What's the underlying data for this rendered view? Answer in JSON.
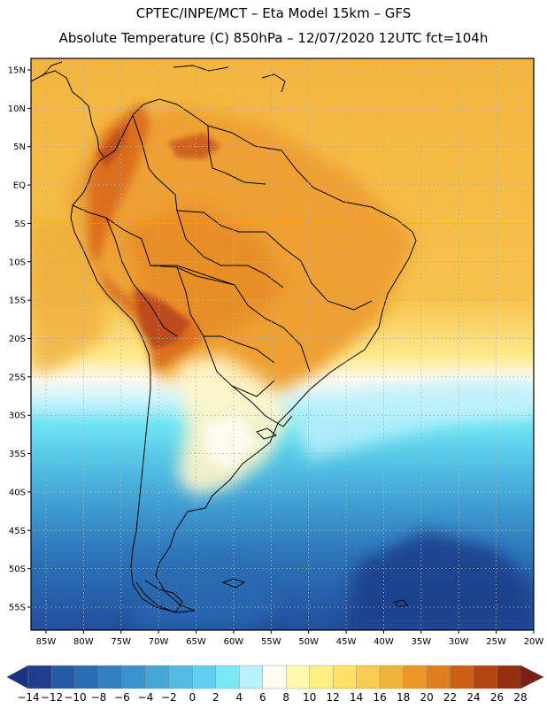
{
  "header": {
    "line1": "CPTEC/INPE/MCT –   Eta Model 15km – GFS",
    "line2": "Absolute Temperature (C) 850hPa – 12/07/2020 12UTC fct=104h"
  },
  "map": {
    "lat_labels": [
      "15N",
      "10N",
      "5N",
      "EQ",
      "5S",
      "10S",
      "15S",
      "20S",
      "25S",
      "30S",
      "35S",
      "40S",
      "45S",
      "50S",
      "55S"
    ],
    "lon_labels": [
      "85W",
      "80W",
      "75W",
      "70W",
      "65W",
      "60W",
      "55W",
      "50W",
      "45W",
      "40W",
      "35W",
      "30W",
      "25W",
      "20W"
    ],
    "lat_values": [
      15,
      10,
      5,
      0,
      -5,
      -10,
      -15,
      -20,
      -25,
      -30,
      -35,
      -40,
      -45,
      -50,
      -55
    ],
    "lon_values": [
      -85,
      -80,
      -75,
      -70,
      -65,
      -60,
      -55,
      -50,
      -45,
      -40,
      -35,
      -30,
      -25,
      -20
    ],
    "extent": {
      "lon_min": -87,
      "lon_max": -20,
      "lat_min": -58,
      "lat_max": 16.5
    }
  },
  "colorbar": {
    "labels": [
      "-14",
      "-12",
      "-10",
      "-8",
      "-6",
      "-4",
      "-2",
      "0",
      "2",
      "4",
      "6",
      "8",
      "10",
      "12",
      "14",
      "16",
      "18",
      "20",
      "22",
      "24",
      "26",
      "28"
    ],
    "colors": [
      "#1f3f8c",
      "#245aa6",
      "#2b6db3",
      "#3380c0",
      "#3b93cc",
      "#45a6d8",
      "#52bae3",
      "#62d0ec",
      "#7ae8f4",
      "#b8f0fb",
      "#fffbee",
      "#fff9b0",
      "#fdef82",
      "#fde066",
      "#f8cc50",
      "#f1b43a",
      "#eb9826",
      "#e07d1c",
      "#cc5e16",
      "#b24613",
      "#94300f"
    ],
    "under_color": "#1a3380",
    "over_color": "#7a1f14"
  }
}
